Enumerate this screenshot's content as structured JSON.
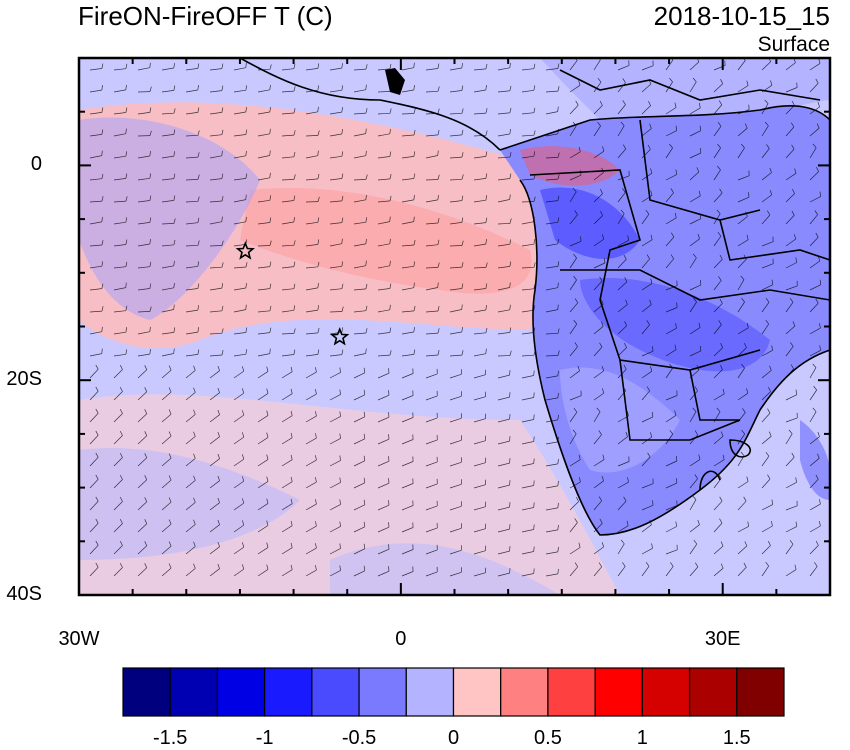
{
  "title": {
    "left": "FireON-FireOFF T (C)",
    "right": "2018-10-15_15",
    "subtitle": "Surface"
  },
  "axes": {
    "lat_labels": [
      {
        "text": "0",
        "lat": 0
      },
      {
        "text": "20S",
        "lat": -20
      },
      {
        "text": "40S",
        "lat": -40
      }
    ],
    "lon_labels": [
      {
        "text": "30W",
        "lon": -30
      },
      {
        "text": "0",
        "lon": 0
      },
      {
        "text": "30E",
        "lon": 30
      }
    ],
    "lon_range": [
      -30,
      40
    ],
    "lat_range": [
      -40,
      10
    ]
  },
  "markers": [
    {
      "name": "star-marker-1",
      "lon": -14.5,
      "lat": -8
    },
    {
      "name": "star-marker-2",
      "lon": -5.7,
      "lat": -16
    }
  ],
  "colorbar": {
    "colors": [
      "#00007f",
      "#0000b2",
      "#0000e5",
      "#1a1aff",
      "#4a4aff",
      "#7a7aff",
      "#b3b3ff",
      "#ffc4c4",
      "#ff8080",
      "#ff4040",
      "#ff0000",
      "#d50000",
      "#aa0000",
      "#800000"
    ],
    "labels": [
      "-1.5",
      "-1",
      "-0.5",
      "0",
      "0.5",
      "1",
      "1.5"
    ]
  },
  "colors": {
    "ocean_warm": "#ffc4c4",
    "ocean_cool": "#b3b3ff",
    "land_dark": "#7a7aff"
  }
}
